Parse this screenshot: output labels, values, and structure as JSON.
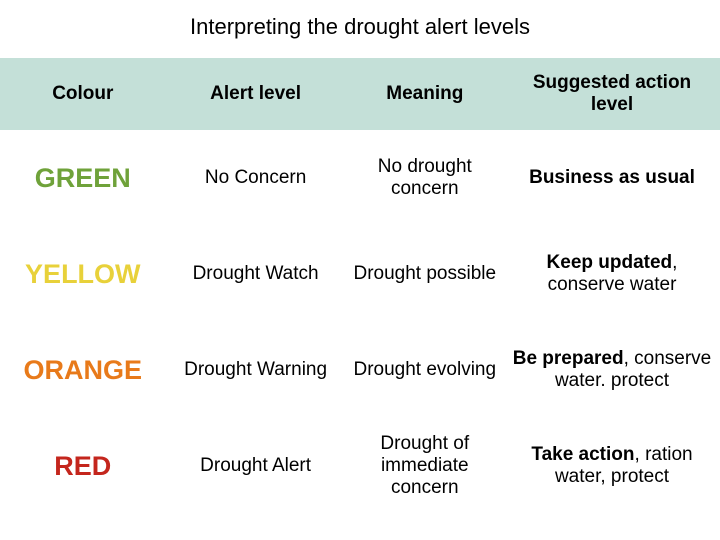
{
  "title": "Interpreting the drought alert levels",
  "table": {
    "columns": [
      "Colour",
      "Alert level",
      "Meaning",
      "Suggested action level"
    ],
    "header_bg": "#c4e0d8",
    "rows": [
      {
        "colour_label": "GREEN",
        "colour_hex": "#6fa23a",
        "alert_level": "No Concern",
        "meaning": "No drought concern",
        "action_bold": "Business as usual",
        "action_rest": ""
      },
      {
        "colour_label": "YELLOW",
        "colour_hex": "#e8d13a",
        "alert_level": "Drought Watch",
        "meaning": "Drought possible",
        "action_bold": "Keep updated",
        "action_rest": ", conserve water"
      },
      {
        "colour_label": "ORANGE",
        "colour_hex": "#e87a1a",
        "alert_level": "Drought Warning",
        "meaning": "Drought evolving",
        "action_bold": "Be prepared",
        "action_rest": ", conserve water. protect"
      },
      {
        "colour_label": "RED",
        "colour_hex": "#c4261d",
        "alert_level": "Drought Alert",
        "meaning": "Drought of immediate concern",
        "action_bold": "Take action",
        "action_rest": ", ration water, protect"
      }
    ]
  }
}
